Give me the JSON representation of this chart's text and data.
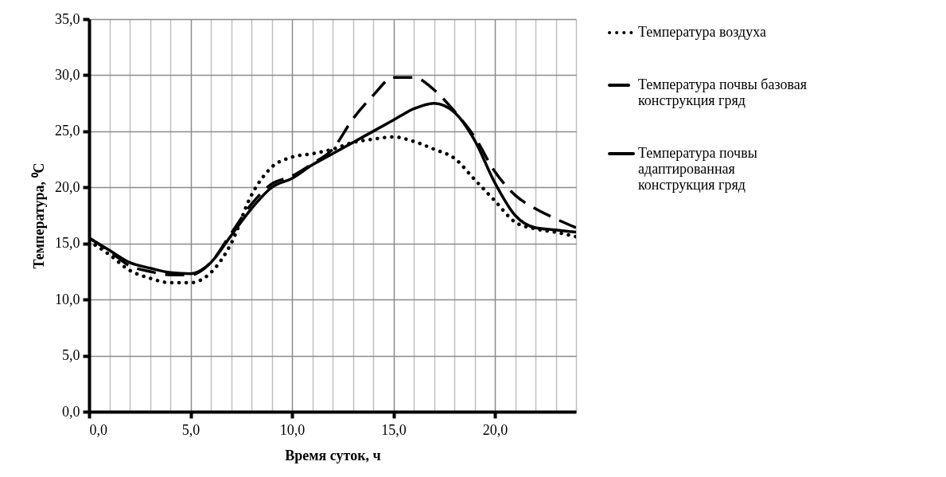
{
  "chart_data": {
    "type": "line",
    "xlabel": "Время суток, ч",
    "ylabel": "Температура, ⁰C",
    "x": [
      0,
      1,
      2,
      3,
      4,
      5,
      6,
      7,
      8,
      9,
      10,
      11,
      12,
      13,
      14,
      15,
      16,
      17,
      18,
      19,
      20,
      21,
      22,
      23,
      24
    ],
    "xlim": [
      0,
      24
    ],
    "xticks": [
      {
        "value": 0,
        "label": "0,0"
      },
      {
        "value": 1,
        "label": null
      },
      {
        "value": 2,
        "label": null
      },
      {
        "value": 3,
        "label": null
      },
      {
        "value": 4,
        "label": null
      },
      {
        "value": 5,
        "label": "5,0"
      },
      {
        "value": 6,
        "label": null
      },
      {
        "value": 7,
        "label": null
      },
      {
        "value": 8,
        "label": null
      },
      {
        "value": 9,
        "label": null
      },
      {
        "value": 10,
        "label": "10,0"
      },
      {
        "value": 11,
        "label": null
      },
      {
        "value": 12,
        "label": null
      },
      {
        "value": 13,
        "label": null
      },
      {
        "value": 14,
        "label": null
      },
      {
        "value": 15,
        "label": "15,0"
      },
      {
        "value": 16,
        "label": null
      },
      {
        "value": 17,
        "label": null
      },
      {
        "value": 18,
        "label": null
      },
      {
        "value": 19,
        "label": null
      },
      {
        "value": 20,
        "label": "20,0"
      },
      {
        "value": 21,
        "label": null
      },
      {
        "value": 22,
        "label": null
      },
      {
        "value": 23,
        "label": null
      },
      {
        "value": 24,
        "label": null
      }
    ],
    "ylim": [
      0,
      35
    ],
    "yticks": [
      {
        "value": 0,
        "label": "0,0"
      },
      {
        "value": 5,
        "label": "5,0"
      },
      {
        "value": 10,
        "label": "10,0"
      },
      {
        "value": 15,
        "label": "15,0"
      },
      {
        "value": 20,
        "label": "20,0"
      },
      {
        "value": 25,
        "label": "25,0"
      },
      {
        "value": 30,
        "label": "30,0"
      },
      {
        "value": 35,
        "label": "35,0"
      }
    ],
    "grid": true,
    "legend": "right",
    "series": [
      {
        "name": "Температура воздуха",
        "color": "#000000",
        "line_style": "dotted",
        "values": [
          15.2,
          14.0,
          12.6,
          11.9,
          11.5,
          11.5,
          12.4,
          15.0,
          19.3,
          21.8,
          22.7,
          23.0,
          23.4,
          24.0,
          24.3,
          24.5,
          24.1,
          23.4,
          22.6,
          20.7,
          18.8,
          16.9,
          16.3,
          16.0,
          15.6
        ]
      },
      {
        "name": "Температура почвы базовая конструкция гряд",
        "color": "#000000",
        "line_style": "dashed",
        "values": [
          15.5,
          14.3,
          13.0,
          12.5,
          12.2,
          12.2,
          13.3,
          15.9,
          18.5,
          20.3,
          21.0,
          22.1,
          23.4,
          26.1,
          28.2,
          29.8,
          29.8,
          28.7,
          26.8,
          24.5,
          21.4,
          19.3,
          18.1,
          17.2,
          16.4
        ]
      },
      {
        "name": "Температура почвы адаптированная конструкция гряд",
        "color": "#000000",
        "line_style": "solid",
        "values": [
          15.5,
          14.4,
          13.3,
          12.8,
          12.4,
          12.3,
          13.3,
          15.7,
          18.1,
          20.0,
          20.8,
          22.0,
          23.0,
          24.0,
          25.0,
          26.0,
          27.0,
          27.5,
          26.7,
          24.2,
          20.4,
          17.5,
          16.4,
          16.2,
          16.0
        ]
      }
    ]
  }
}
